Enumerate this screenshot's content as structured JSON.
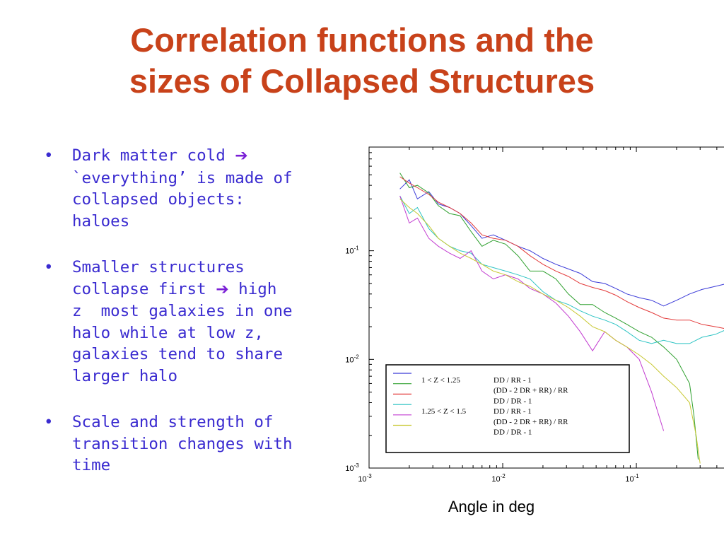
{
  "slide": {
    "title_line1": "Correlation functions and the",
    "title_line2": "sizes of Collapsed Structures",
    "bullets": [
      {
        "lines": [
          "Dark matter cold ",
          "`everything’ is made of",
          "collapsed objects:",
          "haloes"
        ],
        "arrow_after_line": 0
      },
      {
        "lines": [
          "Smaller structures",
          "collapse first ",
          "z  most galaxies in one",
          "halo while at low z,",
          "galaxies tend to share",
          "larger halo"
        ],
        "arrow_after_line": 1,
        "arrow_tail": " high"
      },
      {
        "lines": [
          "Scale and strength of",
          "transition changes with",
          "time"
        ]
      }
    ],
    "arrow_glyph": "➔",
    "bullet_glyph": "•",
    "caption": "Angle in deg",
    "colors": {
      "title": "#c8421a",
      "text": "#3a2bd0",
      "arrow": "#7a1fd6"
    }
  },
  "chart_data": {
    "type": "line",
    "xscale": "log",
    "yscale": "log",
    "xlim": [
      0.001,
      0.55
    ],
    "ylim": [
      0.001,
      0.9
    ],
    "xticks": [
      {
        "value": 0.001,
        "base": "10",
        "exp": "-3"
      },
      {
        "value": 0.01,
        "base": "10",
        "exp": "-2"
      },
      {
        "value": 0.1,
        "base": "10",
        "exp": "-1"
      }
    ],
    "yticks": [
      {
        "value": 0.001,
        "base": "10",
        "exp": "-3"
      },
      {
        "value": 0.01,
        "base": "10",
        "exp": "-2"
      },
      {
        "value": 0.1,
        "base": "10",
        "exp": "-1"
      }
    ],
    "legend_entries": [
      {
        "range": "1  <  Z  <  1.25",
        "estimator": "DD / RR  - 1",
        "color": "#3a3ad8"
      },
      {
        "range": "",
        "estimator": "(DD - 2 DR + RR) / RR",
        "color": "#2fa02f"
      },
      {
        "range": "",
        "estimator": "DD / DR -   1",
        "color": "#e33a3a"
      },
      {
        "range": "1.25  <  Z  <  1.5",
        "estimator": "DD / RR  -   1",
        "color": "#2ec4c4"
      },
      {
        "range": "",
        "estimator": "(DD - 2 DR + RR) / RR",
        "color": "#c23bd0"
      },
      {
        "range": "",
        "estimator": "DD / DR -   1",
        "color": "#c8c832"
      }
    ],
    "series": [
      {
        "color": "#3a3ad8",
        "x": [
          0.0017,
          0.002,
          0.0023,
          0.0028,
          0.0033,
          0.004,
          0.0048,
          0.0058,
          0.007,
          0.0085,
          0.0105,
          0.013,
          0.016,
          0.02,
          0.025,
          0.031,
          0.038,
          0.047,
          0.058,
          0.07,
          0.085,
          0.105,
          0.13,
          0.16,
          0.2,
          0.25,
          0.31,
          0.39,
          0.48,
          0.55
        ],
        "y": [
          0.37,
          0.45,
          0.3,
          0.35,
          0.27,
          0.25,
          0.22,
          0.17,
          0.13,
          0.14,
          0.125,
          0.11,
          0.1,
          0.085,
          0.075,
          0.068,
          0.062,
          0.052,
          0.05,
          0.045,
          0.04,
          0.037,
          0.035,
          0.031,
          0.035,
          0.04,
          0.044,
          0.047,
          0.05,
          0.052
        ]
      },
      {
        "color": "#2fa02f",
        "x": [
          0.0017,
          0.002,
          0.0023,
          0.0028,
          0.0033,
          0.004,
          0.0048,
          0.0058,
          0.007,
          0.0085,
          0.0105,
          0.013,
          0.016,
          0.02,
          0.025,
          0.031,
          0.038,
          0.047,
          0.058,
          0.07,
          0.085,
          0.105,
          0.13,
          0.16,
          0.2,
          0.25,
          0.27,
          0.29
        ],
        "y": [
          0.52,
          0.38,
          0.4,
          0.34,
          0.26,
          0.22,
          0.21,
          0.15,
          0.11,
          0.125,
          0.115,
          0.09,
          0.065,
          0.065,
          0.055,
          0.04,
          0.032,
          0.032,
          0.027,
          0.024,
          0.021,
          0.018,
          0.016,
          0.013,
          0.01,
          0.006,
          0.003,
          0.0012
        ]
      },
      {
        "color": "#e33a3a",
        "x": [
          0.0017,
          0.002,
          0.0023,
          0.0028,
          0.0033,
          0.004,
          0.0048,
          0.0058,
          0.007,
          0.0085,
          0.0105,
          0.013,
          0.016,
          0.02,
          0.025,
          0.031,
          0.038,
          0.047,
          0.058,
          0.07,
          0.085,
          0.105,
          0.13,
          0.16,
          0.2,
          0.25,
          0.31,
          0.39,
          0.48,
          0.55
        ],
        "y": [
          0.48,
          0.42,
          0.38,
          0.33,
          0.28,
          0.25,
          0.22,
          0.18,
          0.14,
          0.13,
          0.125,
          0.11,
          0.09,
          0.075,
          0.065,
          0.058,
          0.05,
          0.046,
          0.043,
          0.039,
          0.034,
          0.03,
          0.027,
          0.024,
          0.023,
          0.023,
          0.021,
          0.02,
          0.019,
          0.018
        ]
      },
      {
        "color": "#2ec4c4",
        "x": [
          0.0017,
          0.002,
          0.0023,
          0.0028,
          0.0033,
          0.004,
          0.0048,
          0.0058,
          0.007,
          0.0085,
          0.0105,
          0.013,
          0.016,
          0.02,
          0.025,
          0.031,
          0.038,
          0.047,
          0.058,
          0.07,
          0.085,
          0.105,
          0.13,
          0.16,
          0.2,
          0.25,
          0.31,
          0.39,
          0.48,
          0.55
        ],
        "y": [
          0.32,
          0.22,
          0.25,
          0.16,
          0.13,
          0.11,
          0.1,
          0.095,
          0.075,
          0.07,
          0.065,
          0.06,
          0.055,
          0.042,
          0.035,
          0.032,
          0.028,
          0.025,
          0.023,
          0.021,
          0.018,
          0.015,
          0.014,
          0.015,
          0.014,
          0.014,
          0.016,
          0.017,
          0.019,
          0.02
        ]
      },
      {
        "color": "#c23bd0",
        "x": [
          0.0017,
          0.002,
          0.0023,
          0.0028,
          0.0033,
          0.004,
          0.0048,
          0.0058,
          0.007,
          0.0085,
          0.0105,
          0.013,
          0.016,
          0.02,
          0.025,
          0.031,
          0.038,
          0.047,
          0.058,
          0.07,
          0.085,
          0.105,
          0.13,
          0.16
        ],
        "y": [
          0.32,
          0.18,
          0.2,
          0.13,
          0.11,
          0.095,
          0.085,
          0.1,
          0.065,
          0.055,
          0.06,
          0.055,
          0.045,
          0.04,
          0.033,
          0.025,
          0.018,
          0.012,
          0.018,
          0.015,
          0.013,
          0.01,
          0.005,
          0.0022
        ]
      },
      {
        "color": "#c8c832",
        "x": [
          0.0017,
          0.002,
          0.0023,
          0.0028,
          0.0033,
          0.004,
          0.0048,
          0.0058,
          0.007,
          0.0085,
          0.0105,
          0.013,
          0.016,
          0.02,
          0.025,
          0.031,
          0.038,
          0.047,
          0.058,
          0.07,
          0.085,
          0.105,
          0.13,
          0.16,
          0.2,
          0.25,
          0.28,
          0.3
        ],
        "y": [
          0.3,
          0.25,
          0.22,
          0.17,
          0.13,
          0.11,
          0.095,
          0.085,
          0.075,
          0.065,
          0.06,
          0.052,
          0.047,
          0.04,
          0.035,
          0.03,
          0.025,
          0.02,
          0.018,
          0.015,
          0.013,
          0.011,
          0.009,
          0.007,
          0.0055,
          0.004,
          0.002,
          0.0011
        ]
      }
    ]
  }
}
